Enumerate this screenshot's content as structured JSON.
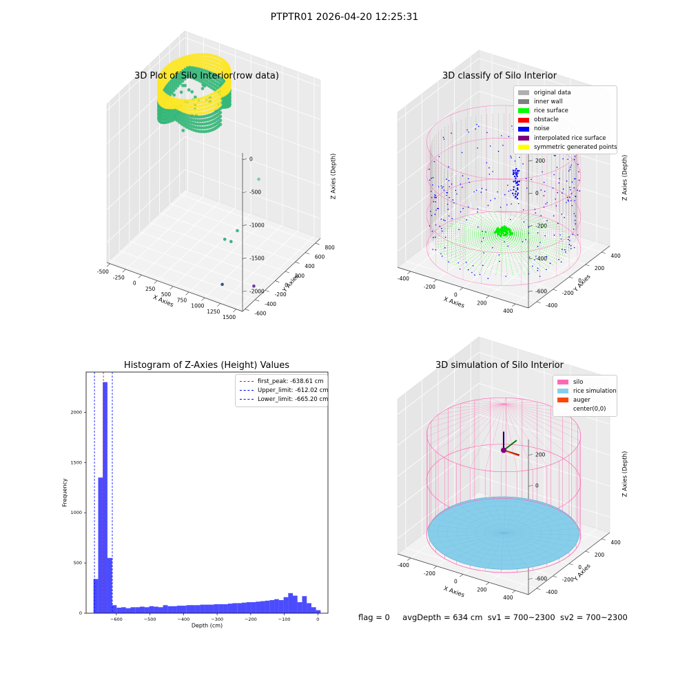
{
  "figure": {
    "title": "PTPTR01 2026-04-20 12:25:31",
    "status": {
      "flag": "flag = 0",
      "avg_depth": "avgDepth = 634 cm",
      "sv1": "sv1 = 700~2300",
      "sv2": "sv2 = 700~2300"
    }
  },
  "chart_data": [
    {
      "type": "scatter3d",
      "title": "3D Plot of Silo Interior(row data)",
      "xlabel": "X Axies",
      "ylabel": "Y Axies",
      "zlabel": "Z Axies (Depth)",
      "x_ticks": [
        "-500",
        "-250",
        "0",
        "250",
        "500",
        "750",
        "1000",
        "1250",
        "1500"
      ],
      "y_ticks": [
        "-600",
        "-400",
        "-200",
        "0",
        "200",
        "400",
        "600",
        "800"
      ],
      "z_ticks": [
        "-2000",
        "-1500",
        "-1000",
        "-500",
        "0"
      ],
      "xlim": [
        -550,
        1600
      ],
      "ylim": [
        -650,
        900
      ],
      "zlim": [
        -2300,
        100
      ],
      "cluster": {
        "x_center": 0,
        "y_center": 400,
        "radius": 440,
        "z_top": -60,
        "z_bottom": -600
      },
      "outliers": [
        {
          "x": 1300,
          "y": 50,
          "z": -900,
          "color": "#6fd0a0"
        },
        {
          "x": 1200,
          "y": -250,
          "z": -1500,
          "color": "#3fb88a"
        },
        {
          "x": 1000,
          "y": -250,
          "z": -1700,
          "color": "#3cae8a"
        },
        {
          "x": 1100,
          "y": -250,
          "z": -1700,
          "color": "#3cae8a"
        },
        {
          "x": 1200,
          "y": -550,
          "z": -2100,
          "color": "#3b528b"
        },
        {
          "x": 1500,
          "y": -300,
          "z": -2200,
          "color": "#6a3d9a"
        }
      ],
      "colors": {
        "top": "#fde725",
        "bottom": "#35b779"
      }
    },
    {
      "type": "scatter3d",
      "title": "3D classify of Silo Interior",
      "xlabel": "X Axies",
      "ylabel": "Y Axies",
      "zlabel": "Z Axies (Depth)",
      "x_ticks": [
        "-400",
        "-200",
        "0",
        "200",
        "400"
      ],
      "y_ticks": [
        "-400",
        "-200",
        "0",
        "200",
        "400"
      ],
      "z_ticks": [
        "-600",
        "-400",
        "-200",
        "0",
        "200"
      ],
      "xlim": [
        -500,
        500
      ],
      "ylim": [
        -500,
        500
      ],
      "zlim": [
        -700,
        250
      ],
      "legend": [
        {
          "label": "original data",
          "color": "#b0b0b0"
        },
        {
          "label": "inner wall",
          "color": "#808080"
        },
        {
          "label": "rice surface",
          "color": "#00ff00"
        },
        {
          "label": "obstacle",
          "color": "#ff0000"
        },
        {
          "label": "noise",
          "color": "#0000ff"
        },
        {
          "label": "interpolated rice surface",
          "color": "#800080"
        },
        {
          "label": "symmetric generated points",
          "color": "#ffff00"
        }
      ],
      "silo": {
        "radius": 500,
        "z_top": 0,
        "z_bottom": -650
      },
      "colors": {
        "silo": "#ff69b4",
        "wall": "#808080",
        "surface": "#00ee00",
        "noise": "#0000ff"
      }
    },
    {
      "type": "bar",
      "title": "Histogram of Z-Axies (Height) Values",
      "xlabel": "Depth (cm)",
      "ylabel": "Frequency",
      "xlim": [
        -690,
        30
      ],
      "ylim": [
        0,
        2400
      ],
      "x_ticks": [
        -600,
        -500,
        -400,
        -300,
        -200,
        -100,
        0
      ],
      "y_ticks": [
        0,
        500,
        1000,
        1500,
        2000
      ],
      "bar_color": "#0000ff",
      "bin_width": 13.8,
      "bins_start": -668,
      "values": [
        340,
        1350,
        2300,
        550,
        80,
        55,
        60,
        50,
        60,
        60,
        65,
        60,
        70,
        65,
        60,
        80,
        70,
        70,
        75,
        75,
        80,
        80,
        80,
        85,
        85,
        85,
        90,
        90,
        90,
        95,
        100,
        100,
        105,
        110,
        110,
        115,
        120,
        125,
        130,
        140,
        130,
        160,
        200,
        175,
        110,
        170,
        100,
        60,
        30
      ],
      "vlines": [
        {
          "label": "first_peak: -638.61 cm",
          "value": -638.61,
          "color": "#ff0000"
        },
        {
          "label": "Upper_limit: -612.02 cm",
          "value": -612.02,
          "color": "#0000ff"
        },
        {
          "label": "Lower_limit: -665.20 cm",
          "value": -665.2,
          "color": "#0000ff"
        }
      ]
    },
    {
      "type": "surface3d",
      "title": "3D simulation of Silo Interior",
      "xlabel": "X Axies",
      "ylabel": "Y Axies",
      "zlabel": "Z Axies (Depth)",
      "x_ticks": [
        "-400",
        "-200",
        "0",
        "200",
        "400"
      ],
      "y_ticks": [
        "-400",
        "-200",
        "0",
        "200",
        "400"
      ],
      "z_ticks": [
        "-600",
        "-400",
        "-200",
        "0",
        "200"
      ],
      "xlim": [
        -500,
        500
      ],
      "ylim": [
        -500,
        500
      ],
      "zlim": [
        -700,
        300
      ],
      "legend": [
        {
          "label": "silo",
          "color": "#ff69b4"
        },
        {
          "label": "rice simulation",
          "color": "#87ceeb"
        },
        {
          "label": "auger",
          "color": "#ff4500"
        },
        {
          "label": "center(0,0)",
          "color": "#ffffff"
        }
      ],
      "silo": {
        "radius": 500,
        "z_top": 0,
        "z_bottom": -650
      },
      "rice_depth": -634
    }
  ]
}
